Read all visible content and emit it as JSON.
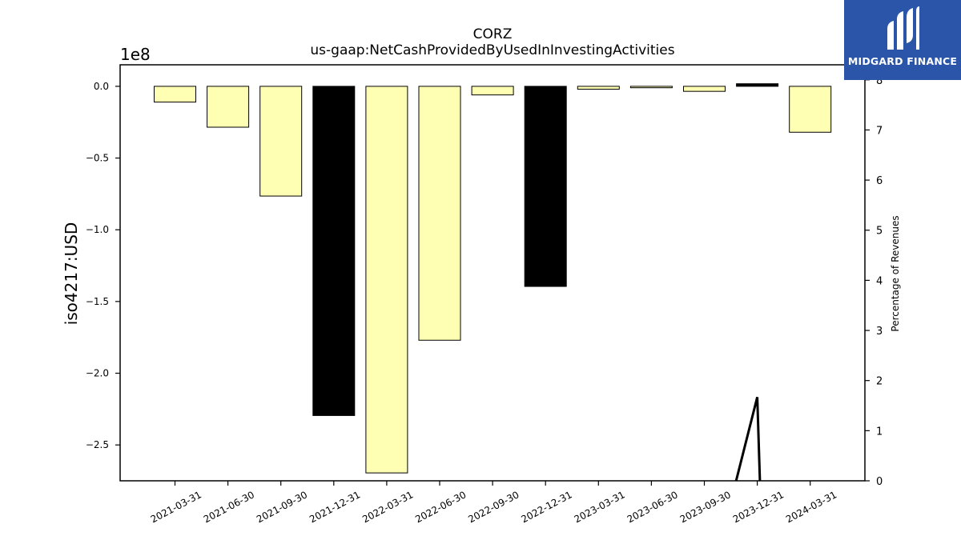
{
  "chart_data": {
    "type": "bar",
    "title": "CORZ",
    "subtitle": "us-gaap:NetCashProvidedByUsedInInvestingActivities",
    "ylabel": "iso4217:USD",
    "y_offset_label": "1e8",
    "y2label": "Percentage of Revenues",
    "categories": [
      "2021-03-31",
      "2021-06-30",
      "2021-09-30",
      "2021-12-31",
      "2022-03-31",
      "2022-06-30",
      "2022-09-30",
      "2022-12-31",
      "2023-03-31",
      "2023-06-30",
      "2023-09-30",
      "2023-12-31",
      "2024-03-31"
    ],
    "values": [
      -11000000,
      -28500000,
      -76500000,
      -229500000,
      -269500000,
      -177000000,
      -6000000,
      -139500000,
      -2000000,
      -1000000,
      -3500000,
      1800000,
      -32000000
    ],
    "highlighted": [
      false,
      false,
      false,
      true,
      false,
      false,
      false,
      true,
      false,
      false,
      false,
      true,
      false
    ],
    "bar_color": "#ffffb3",
    "highlight_color": "#000000",
    "ylim": [
      -275000000,
      15000000
    ],
    "yticks": [
      0,
      -50000000,
      -100000000,
      -150000000,
      -200000000,
      -250000000
    ],
    "ytick_labels": [
      "0.0",
      "−0.5",
      "−1.0",
      "−1.5",
      "−2.0",
      "−2.5"
    ],
    "y2lim": [
      0,
      8.3
    ],
    "y2ticks": [
      0,
      1,
      2,
      3,
      4,
      5,
      6,
      7,
      8
    ],
    "y2tick_labels": [
      "0",
      "1",
      "2",
      "3",
      "4",
      "5",
      "6",
      "7",
      "8"
    ],
    "secondary_line": {
      "x_index": [
        10.6,
        11.0,
        11.05
      ],
      "values": [
        0,
        1.67,
        0
      ],
      "color": "#000000"
    },
    "grid": false,
    "legend": "none"
  },
  "logo": {
    "text": "MIDGARD FINANCE",
    "background": "#2a55a8"
  }
}
